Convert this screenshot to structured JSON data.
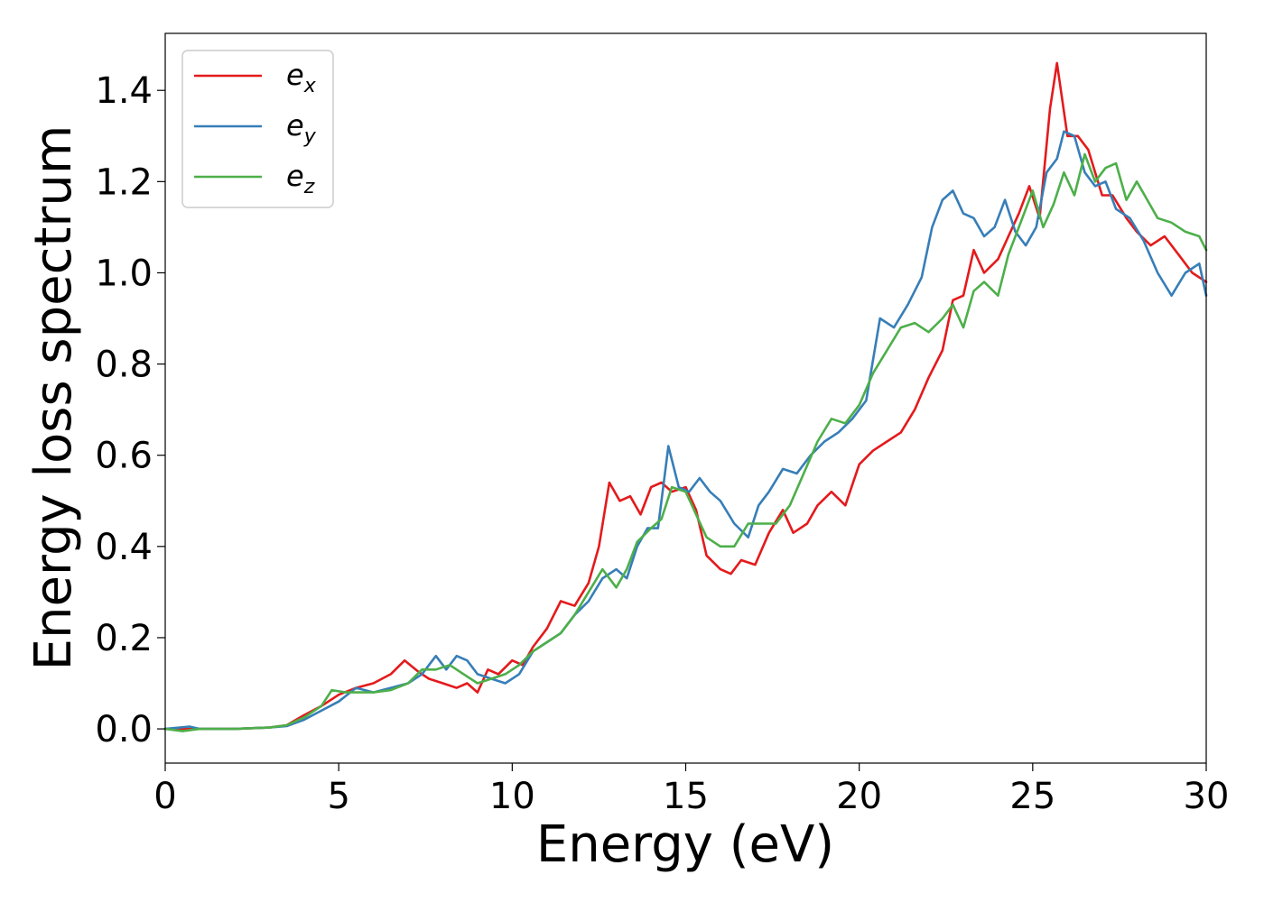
{
  "chart_data": {
    "type": "line",
    "title": "",
    "xlabel": "Energy (eV)",
    "ylabel": "Energy loss spectrum",
    "xlim": [
      0,
      30
    ],
    "ylim": [
      -0.075,
      1.525
    ],
    "xticks": [
      "0",
      "5",
      "10",
      "15",
      "20",
      "25",
      "30"
    ],
    "yticks": [
      "0.0",
      "0.2",
      "0.4",
      "0.6",
      "0.8",
      "1.0",
      "1.2",
      "1.4"
    ],
    "grid": false,
    "legend_position": "top-left",
    "series": [
      {
        "name": "e",
        "subscript": "x",
        "color": "#e41a1c",
        "points": [
          [
            0,
            0.0
          ],
          [
            1,
            0.0
          ],
          [
            2,
            0.0
          ],
          [
            3,
            0.003
          ],
          [
            3.5,
            0.008
          ],
          [
            4,
            0.03
          ],
          [
            4.5,
            0.05
          ],
          [
            5,
            0.075
          ],
          [
            5.5,
            0.09
          ],
          [
            6,
            0.1
          ],
          [
            6.5,
            0.12
          ],
          [
            6.9,
            0.15
          ],
          [
            7.3,
            0.125
          ],
          [
            7.6,
            0.11
          ],
          [
            8,
            0.1
          ],
          [
            8.4,
            0.09
          ],
          [
            8.7,
            0.1
          ],
          [
            9,
            0.08
          ],
          [
            9.3,
            0.13
          ],
          [
            9.6,
            0.12
          ],
          [
            10,
            0.15
          ],
          [
            10.3,
            0.14
          ],
          [
            10.6,
            0.18
          ],
          [
            11,
            0.22
          ],
          [
            11.4,
            0.28
          ],
          [
            11.8,
            0.27
          ],
          [
            12.2,
            0.32
          ],
          [
            12.5,
            0.4
          ],
          [
            12.8,
            0.54
          ],
          [
            13.1,
            0.5
          ],
          [
            13.4,
            0.51
          ],
          [
            13.7,
            0.47
          ],
          [
            14,
            0.53
          ],
          [
            14.3,
            0.54
          ],
          [
            14.6,
            0.52
          ],
          [
            15,
            0.53
          ],
          [
            15.3,
            0.48
          ],
          [
            15.6,
            0.38
          ],
          [
            16,
            0.35
          ],
          [
            16.3,
            0.34
          ],
          [
            16.6,
            0.37
          ],
          [
            17,
            0.36
          ],
          [
            17.4,
            0.43
          ],
          [
            17.8,
            0.48
          ],
          [
            18.1,
            0.43
          ],
          [
            18.5,
            0.45
          ],
          [
            18.8,
            0.49
          ],
          [
            19.2,
            0.52
          ],
          [
            19.6,
            0.49
          ],
          [
            20,
            0.58
          ],
          [
            20.4,
            0.61
          ],
          [
            20.8,
            0.63
          ],
          [
            21.2,
            0.65
          ],
          [
            21.6,
            0.7
          ],
          [
            22,
            0.77
          ],
          [
            22.4,
            0.83
          ],
          [
            22.7,
            0.94
          ],
          [
            23,
            0.95
          ],
          [
            23.3,
            1.05
          ],
          [
            23.6,
            1.0
          ],
          [
            24,
            1.03
          ],
          [
            24.3,
            1.08
          ],
          [
            24.6,
            1.13
          ],
          [
            24.9,
            1.19
          ],
          [
            25.2,
            1.12
          ],
          [
            25.5,
            1.36
          ],
          [
            25.7,
            1.46
          ],
          [
            26,
            1.3
          ],
          [
            26.3,
            1.3
          ],
          [
            26.6,
            1.27
          ],
          [
            27,
            1.17
          ],
          [
            27.3,
            1.17
          ],
          [
            27.7,
            1.12
          ],
          [
            28,
            1.09
          ],
          [
            28.4,
            1.06
          ],
          [
            28.8,
            1.08
          ],
          [
            29.2,
            1.04
          ],
          [
            29.6,
            1.0
          ],
          [
            30,
            0.98
          ]
        ]
      },
      {
        "name": "e",
        "subscript": "y",
        "color": "#377eb8",
        "points": [
          [
            0,
            0.0
          ],
          [
            0.7,
            0.005
          ],
          [
            1,
            0.0
          ],
          [
            2,
            0.0
          ],
          [
            3,
            0.003
          ],
          [
            3.5,
            0.006
          ],
          [
            4,
            0.02
          ],
          [
            4.5,
            0.04
          ],
          [
            5,
            0.06
          ],
          [
            5.5,
            0.09
          ],
          [
            6,
            0.08
          ],
          [
            6.5,
            0.09
          ],
          [
            7,
            0.1
          ],
          [
            7.4,
            0.12
          ],
          [
            7.8,
            0.16
          ],
          [
            8.1,
            0.13
          ],
          [
            8.4,
            0.16
          ],
          [
            8.7,
            0.15
          ],
          [
            9,
            0.12
          ],
          [
            9.4,
            0.11
          ],
          [
            9.8,
            0.1
          ],
          [
            10.2,
            0.12
          ],
          [
            10.6,
            0.17
          ],
          [
            11,
            0.19
          ],
          [
            11.4,
            0.21
          ],
          [
            11.8,
            0.25
          ],
          [
            12.2,
            0.28
          ],
          [
            12.6,
            0.33
          ],
          [
            13,
            0.35
          ],
          [
            13.3,
            0.33
          ],
          [
            13.6,
            0.4
          ],
          [
            13.9,
            0.44
          ],
          [
            14.2,
            0.44
          ],
          [
            14.5,
            0.62
          ],
          [
            14.8,
            0.53
          ],
          [
            15.1,
            0.52
          ],
          [
            15.4,
            0.55
          ],
          [
            15.7,
            0.52
          ],
          [
            16,
            0.5
          ],
          [
            16.4,
            0.45
          ],
          [
            16.8,
            0.42
          ],
          [
            17.1,
            0.49
          ],
          [
            17.4,
            0.52
          ],
          [
            17.8,
            0.57
          ],
          [
            18.2,
            0.56
          ],
          [
            18.6,
            0.6
          ],
          [
            19,
            0.63
          ],
          [
            19.4,
            0.65
          ],
          [
            19.8,
            0.68
          ],
          [
            20.2,
            0.72
          ],
          [
            20.6,
            0.9
          ],
          [
            21,
            0.88
          ],
          [
            21.4,
            0.93
          ],
          [
            21.8,
            0.99
          ],
          [
            22.1,
            1.1
          ],
          [
            22.4,
            1.16
          ],
          [
            22.7,
            1.18
          ],
          [
            23,
            1.13
          ],
          [
            23.3,
            1.12
          ],
          [
            23.6,
            1.08
          ],
          [
            23.9,
            1.1
          ],
          [
            24.2,
            1.16
          ],
          [
            24.5,
            1.09
          ],
          [
            24.8,
            1.06
          ],
          [
            25.1,
            1.1
          ],
          [
            25.4,
            1.22
          ],
          [
            25.7,
            1.25
          ],
          [
            25.9,
            1.31
          ],
          [
            26.2,
            1.3
          ],
          [
            26.5,
            1.22
          ],
          [
            26.8,
            1.19
          ],
          [
            27.1,
            1.2
          ],
          [
            27.4,
            1.14
          ],
          [
            27.8,
            1.12
          ],
          [
            28.2,
            1.07
          ],
          [
            28.6,
            1.0
          ],
          [
            29,
            0.95
          ],
          [
            29.4,
            1.0
          ],
          [
            29.8,
            1.02
          ],
          [
            30,
            0.95
          ]
        ]
      },
      {
        "name": "e",
        "subscript": "z",
        "color": "#4daf4a",
        "points": [
          [
            0,
            0.0
          ],
          [
            0.5,
            -0.005
          ],
          [
            1,
            0.0
          ],
          [
            2,
            0.0
          ],
          [
            3,
            0.003
          ],
          [
            3.5,
            0.008
          ],
          [
            4,
            0.025
          ],
          [
            4.5,
            0.05
          ],
          [
            4.8,
            0.085
          ],
          [
            5.2,
            0.08
          ],
          [
            5.6,
            0.08
          ],
          [
            6,
            0.08
          ],
          [
            6.5,
            0.085
          ],
          [
            7,
            0.1
          ],
          [
            7.4,
            0.13
          ],
          [
            7.8,
            0.13
          ],
          [
            8.2,
            0.14
          ],
          [
            8.6,
            0.12
          ],
          [
            9,
            0.1
          ],
          [
            9.4,
            0.11
          ],
          [
            9.8,
            0.12
          ],
          [
            10.2,
            0.14
          ],
          [
            10.6,
            0.17
          ],
          [
            11,
            0.19
          ],
          [
            11.4,
            0.21
          ],
          [
            11.8,
            0.25
          ],
          [
            12.2,
            0.3
          ],
          [
            12.6,
            0.35
          ],
          [
            13,
            0.31
          ],
          [
            13.3,
            0.35
          ],
          [
            13.6,
            0.41
          ],
          [
            14,
            0.44
          ],
          [
            14.3,
            0.46
          ],
          [
            14.6,
            0.53
          ],
          [
            15,
            0.52
          ],
          [
            15.3,
            0.47
          ],
          [
            15.6,
            0.42
          ],
          [
            16,
            0.4
          ],
          [
            16.4,
            0.4
          ],
          [
            16.8,
            0.45
          ],
          [
            17.2,
            0.45
          ],
          [
            17.6,
            0.45
          ],
          [
            18,
            0.49
          ],
          [
            18.4,
            0.56
          ],
          [
            18.8,
            0.63
          ],
          [
            19.2,
            0.68
          ],
          [
            19.6,
            0.67
          ],
          [
            20,
            0.71
          ],
          [
            20.4,
            0.78
          ],
          [
            20.8,
            0.83
          ],
          [
            21.2,
            0.88
          ],
          [
            21.6,
            0.89
          ],
          [
            22,
            0.87
          ],
          [
            22.4,
            0.9
          ],
          [
            22.7,
            0.93
          ],
          [
            23,
            0.88
          ],
          [
            23.3,
            0.96
          ],
          [
            23.6,
            0.98
          ],
          [
            24,
            0.95
          ],
          [
            24.3,
            1.04
          ],
          [
            24.6,
            1.1
          ],
          [
            25,
            1.18
          ],
          [
            25.3,
            1.1
          ],
          [
            25.6,
            1.15
          ],
          [
            25.9,
            1.22
          ],
          [
            26.2,
            1.17
          ],
          [
            26.5,
            1.26
          ],
          [
            26.8,
            1.2
          ],
          [
            27.1,
            1.23
          ],
          [
            27.4,
            1.24
          ],
          [
            27.7,
            1.16
          ],
          [
            28,
            1.2
          ],
          [
            28.3,
            1.16
          ],
          [
            28.6,
            1.12
          ],
          [
            29,
            1.11
          ],
          [
            29.4,
            1.09
          ],
          [
            29.8,
            1.08
          ],
          [
            30,
            1.05
          ]
        ]
      }
    ]
  }
}
